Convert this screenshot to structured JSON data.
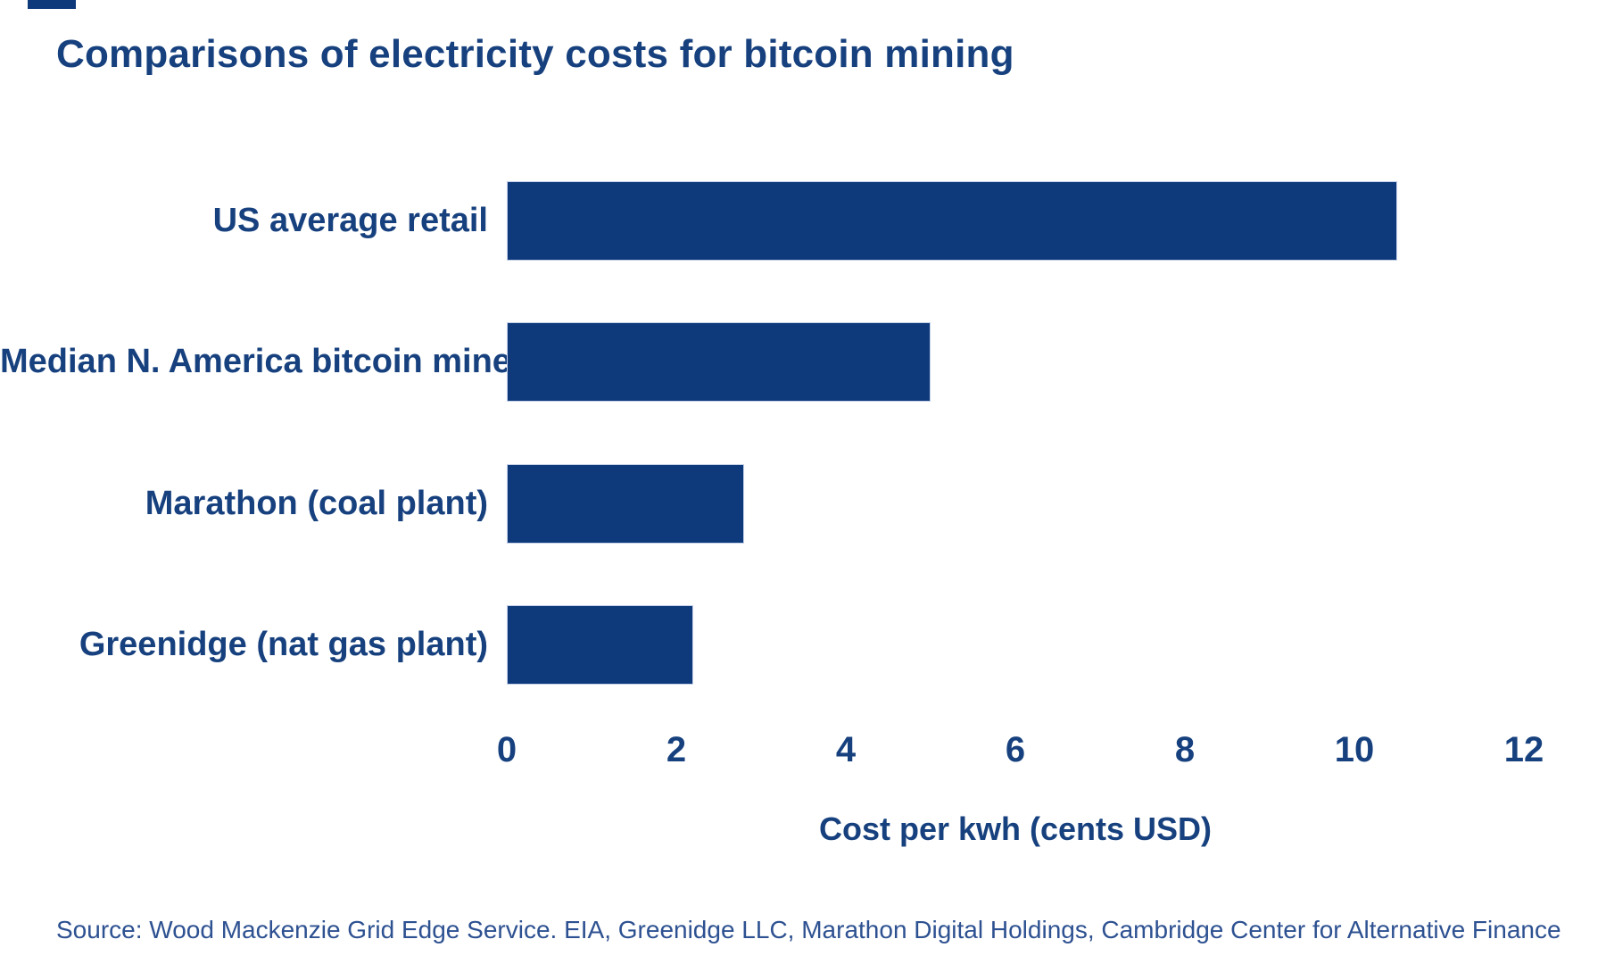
{
  "title": "Comparisons of electricity costs for bitcoin mining",
  "source": "Source: Wood Mackenzie Grid Edge Service. EIA, Greenidge LLC, Marathon Digital Holdings, Cambridge Center for Alternative Finance",
  "colors": {
    "bar_fill": "#0e3a7c",
    "text_navy": "#17417e",
    "source_text": "#2d5191",
    "background": "#ffffff"
  },
  "chart_data": {
    "type": "bar",
    "orientation": "horizontal",
    "title": "Comparisons of electricity costs for bitcoin mining",
    "categories": [
      "US average retail",
      "Median N. America bitcoin mine",
      "Marathon (coal plant)",
      "Greenidge (nat gas plant)"
    ],
    "values": [
      10.5,
      5.0,
      2.8,
      2.2
    ],
    "xlabel": "Cost per kwh (cents USD)",
    "ylabel": "",
    "xlim": [
      0,
      12
    ],
    "xticks": [
      0,
      2,
      4,
      6,
      8,
      10,
      12
    ],
    "grid": false,
    "legend": false,
    "bar_color": "#0e3a7c"
  }
}
